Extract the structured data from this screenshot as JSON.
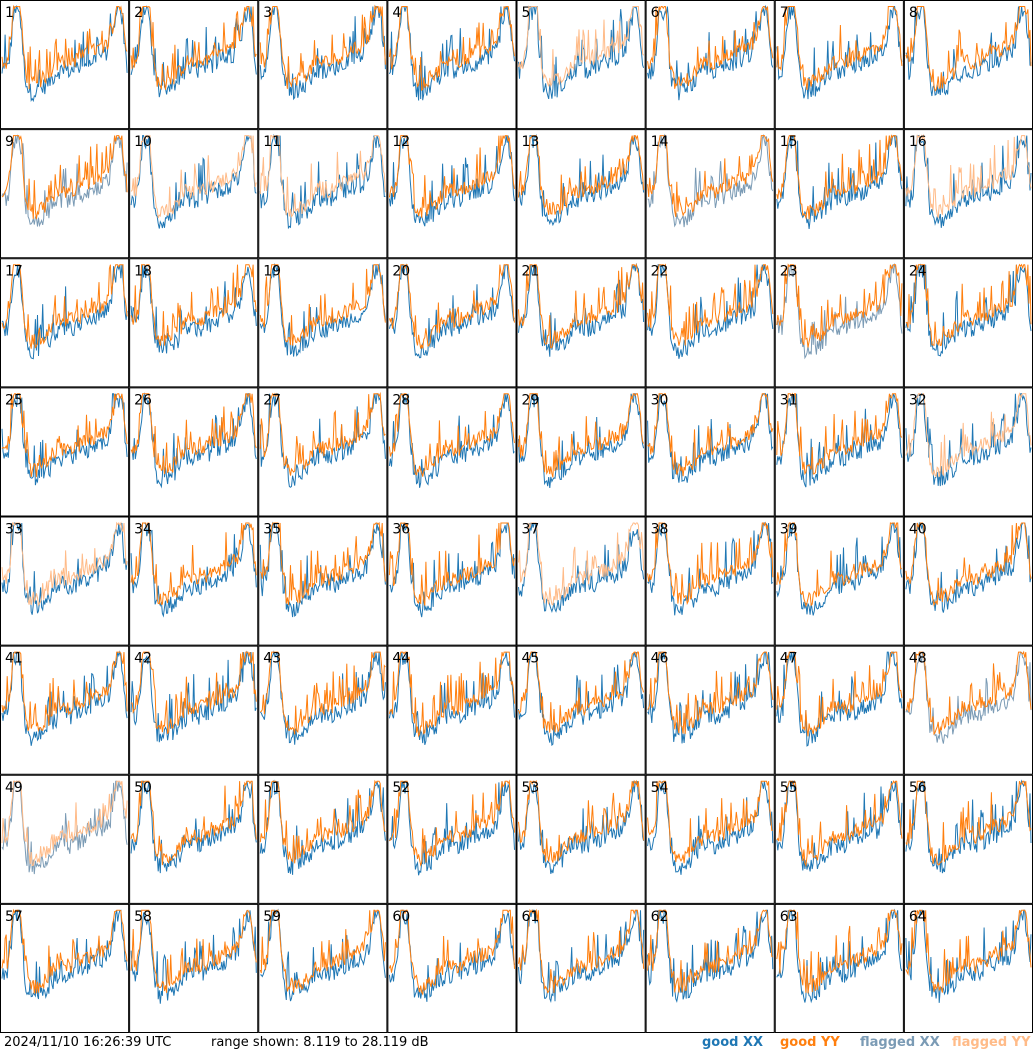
{
  "chart_data": {
    "type": "line",
    "title": "",
    "footer": {
      "timestamp": "2024/11/10 16:26:39 UTC",
      "range_text": "range shown: 8.119 to 28.119 dB"
    },
    "range_db": [
      8.119,
      28.119
    ],
    "legend": {
      "good_xx": "good XX",
      "good_yy": "good YY",
      "flagged_xx": "flagged XX",
      "flagged_yy": "flagged YY"
    },
    "colors": {
      "good_xx": "#1f77b4",
      "good_yy": "#ff7f0e",
      "flagged_xx": "#7b9bb5",
      "flagged_yy": "#ffbb88",
      "border": "#000000"
    },
    "grid_cols": 8,
    "grid_rows": 8,
    "tiles": [
      {
        "id": "1",
        "xx": "good",
        "yy": "good"
      },
      {
        "id": "2",
        "xx": "good",
        "yy": "good"
      },
      {
        "id": "3",
        "xx": "good",
        "yy": "good"
      },
      {
        "id": "4",
        "xx": "good",
        "yy": "good"
      },
      {
        "id": "5",
        "xx": "good",
        "yy": "flagged"
      },
      {
        "id": "6",
        "xx": "good",
        "yy": "good"
      },
      {
        "id": "7",
        "xx": "good",
        "yy": "good"
      },
      {
        "id": "8",
        "xx": "good",
        "yy": "good"
      },
      {
        "id": "9",
        "xx": "flagged",
        "yy": "good"
      },
      {
        "id": "10",
        "xx": "good",
        "yy": "flagged"
      },
      {
        "id": "11",
        "xx": "good",
        "yy": "flagged"
      },
      {
        "id": "12",
        "xx": "good",
        "yy": "good"
      },
      {
        "id": "13",
        "xx": "good",
        "yy": "good"
      },
      {
        "id": "14",
        "xx": "flagged",
        "yy": "good"
      },
      {
        "id": "15",
        "xx": "good",
        "yy": "good"
      },
      {
        "id": "16",
        "xx": "good",
        "yy": "flagged"
      },
      {
        "id": "17",
        "xx": "good",
        "yy": "good"
      },
      {
        "id": "18",
        "xx": "good",
        "yy": "good"
      },
      {
        "id": "19",
        "xx": "good",
        "yy": "good"
      },
      {
        "id": "20",
        "xx": "good",
        "yy": "good"
      },
      {
        "id": "21",
        "xx": "good",
        "yy": "good"
      },
      {
        "id": "22",
        "xx": "good",
        "yy": "good"
      },
      {
        "id": "23",
        "xx": "flagged",
        "yy": "good"
      },
      {
        "id": "24",
        "xx": "good",
        "yy": "good"
      },
      {
        "id": "25",
        "xx": "good",
        "yy": "good"
      },
      {
        "id": "26",
        "xx": "good",
        "yy": "good"
      },
      {
        "id": "27",
        "xx": "good",
        "yy": "good"
      },
      {
        "id": "28",
        "xx": "good",
        "yy": "good"
      },
      {
        "id": "29",
        "xx": "good",
        "yy": "good"
      },
      {
        "id": "30",
        "xx": "good",
        "yy": "good"
      },
      {
        "id": "31",
        "xx": "good",
        "yy": "good"
      },
      {
        "id": "32",
        "xx": "good",
        "yy": "flagged"
      },
      {
        "id": "33",
        "xx": "good",
        "yy": "flagged"
      },
      {
        "id": "34",
        "xx": "good",
        "yy": "good"
      },
      {
        "id": "35",
        "xx": "good",
        "yy": "good"
      },
      {
        "id": "36",
        "xx": "good",
        "yy": "good"
      },
      {
        "id": "37",
        "xx": "good",
        "yy": "flagged"
      },
      {
        "id": "38",
        "xx": "good",
        "yy": "good"
      },
      {
        "id": "39",
        "xx": "good",
        "yy": "good"
      },
      {
        "id": "40",
        "xx": "good",
        "yy": "good"
      },
      {
        "id": "41",
        "xx": "good",
        "yy": "good"
      },
      {
        "id": "42",
        "xx": "good",
        "yy": "good"
      },
      {
        "id": "43",
        "xx": "good",
        "yy": "good"
      },
      {
        "id": "44",
        "xx": "good",
        "yy": "good"
      },
      {
        "id": "45",
        "xx": "good",
        "yy": "good"
      },
      {
        "id": "46",
        "xx": "good",
        "yy": "good"
      },
      {
        "id": "47",
        "xx": "good",
        "yy": "good"
      },
      {
        "id": "48",
        "xx": "flagged",
        "yy": "good"
      },
      {
        "id": "49",
        "xx": "flagged",
        "yy": "flagged"
      },
      {
        "id": "50",
        "xx": "good",
        "yy": "good"
      },
      {
        "id": "51",
        "xx": "good",
        "yy": "good"
      },
      {
        "id": "52",
        "xx": "good",
        "yy": "good"
      },
      {
        "id": "53",
        "xx": "good",
        "yy": "good"
      },
      {
        "id": "54",
        "xx": "good",
        "yy": "good"
      },
      {
        "id": "55",
        "xx": "good",
        "yy": "good"
      },
      {
        "id": "56",
        "xx": "good",
        "yy": "good"
      },
      {
        "id": "57",
        "xx": "good",
        "yy": "good"
      },
      {
        "id": "58",
        "xx": "good",
        "yy": "good"
      },
      {
        "id": "59",
        "xx": "good",
        "yy": "good"
      },
      {
        "id": "60",
        "xx": "good",
        "yy": "good"
      },
      {
        "id": "61",
        "xx": "good",
        "yy": "good"
      },
      {
        "id": "62",
        "xx": "good",
        "yy": "good"
      },
      {
        "id": "63",
        "xx": "good",
        "yy": "good"
      },
      {
        "id": "64",
        "xx": "good",
        "yy": "good"
      }
    ]
  }
}
